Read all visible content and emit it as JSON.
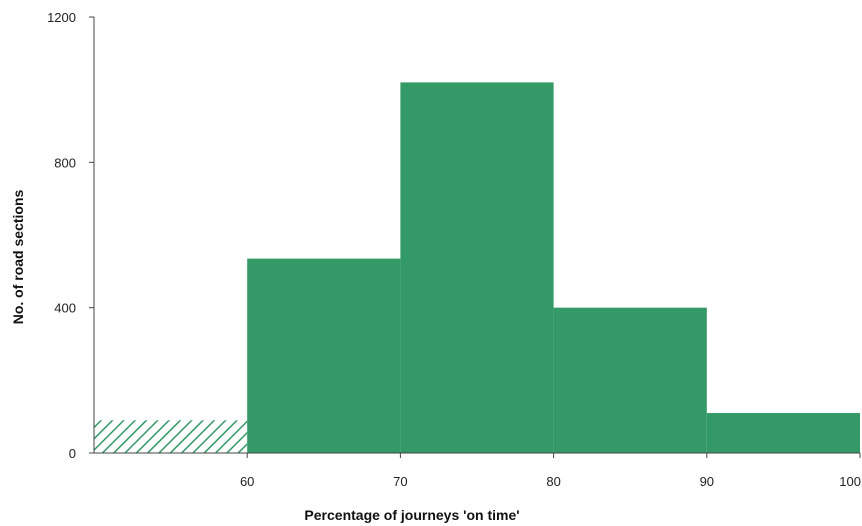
{
  "colors": {
    "bar_fill": "#339966",
    "hatch_stroke": "#339966",
    "axis": "#444444",
    "text": "#222222"
  },
  "chart_data": {
    "type": "bar",
    "subtype": "histogram",
    "title": "",
    "xlabel": "Percentage of  journeys 'on time'",
    "ylabel": "No. of  road sections",
    "xlim": [
      50,
      100
    ],
    "ylim": [
      0,
      1200
    ],
    "x_ticks": [
      "60",
      "70",
      "80",
      "90",
      "100"
    ],
    "y_ticks": [
      "0",
      "400",
      "800",
      "1200"
    ],
    "grid": false,
    "legend": "none",
    "bins": [
      {
        "from": 50,
        "to": 60,
        "value": 90,
        "style": "hatched"
      },
      {
        "from": 60,
        "to": 70,
        "value": 535,
        "style": "solid"
      },
      {
        "from": 70,
        "to": 80,
        "value": 1020,
        "style": "solid"
      },
      {
        "from": 80,
        "to": 90,
        "value": 400,
        "style": "solid"
      },
      {
        "from": 90,
        "to": 100,
        "value": 110,
        "style": "solid"
      }
    ]
  }
}
